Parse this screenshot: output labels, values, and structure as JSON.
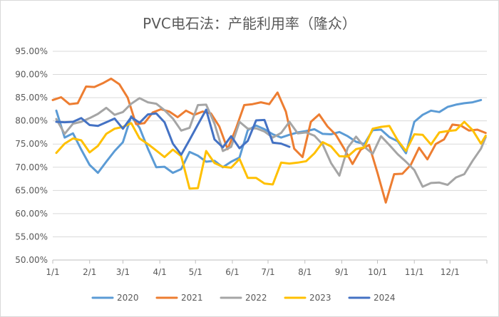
{
  "chart_data": {
    "type": "line",
    "title": "PVC电石法：产能利用率（隆众）",
    "xlabel": "",
    "ylabel": "",
    "ylim": [
      50,
      95
    ],
    "y_ticks": [
      "50.00%",
      "55.00%",
      "60.00%",
      "65.00%",
      "70.00%",
      "75.00%",
      "80.00%",
      "85.00%",
      "90.00%",
      "95.00%"
    ],
    "x_ticks": [
      "1/1",
      "2/1",
      "3/1",
      "4/1",
      "5/1",
      "6/1",
      "7/1",
      "8/1",
      "9/1",
      "10/1",
      "11/1",
      "12/1"
    ],
    "x_tick_days": [
      0,
      31,
      59,
      90,
      120,
      151,
      181,
      212,
      243,
      273,
      304,
      334
    ],
    "x_range_days": [
      0,
      365
    ],
    "grid": "horizontal",
    "legend_position": "bottom",
    "series": [
      {
        "name": "2020",
        "color": "#5B9BD5",
        "points": [
          [
            3,
            82.2
          ],
          [
            10,
            76.4
          ],
          [
            17,
            77.3
          ],
          [
            24,
            73.8
          ],
          [
            31,
            70.5
          ],
          [
            38,
            68.8
          ],
          [
            45,
            71.2
          ],
          [
            52,
            73.5
          ],
          [
            59,
            75.4
          ],
          [
            66,
            81.0
          ],
          [
            73,
            78.5
          ],
          [
            80,
            74.0
          ],
          [
            87,
            70.0
          ],
          [
            94,
            70.1
          ],
          [
            101,
            68.8
          ],
          [
            108,
            69.6
          ],
          [
            115,
            73.3
          ],
          [
            122,
            72.5
          ],
          [
            129,
            71.2
          ],
          [
            136,
            71.4
          ],
          [
            143,
            70.0
          ],
          [
            150,
            71.2
          ],
          [
            157,
            72.1
          ],
          [
            164,
            78.0
          ],
          [
            171,
            79.0
          ],
          [
            178,
            78.2
          ],
          [
            185,
            77.1
          ],
          [
            192,
            76.4
          ],
          [
            199,
            77.0
          ],
          [
            206,
            77.5
          ],
          [
            213,
            77.8
          ],
          [
            220,
            78.2
          ],
          [
            227,
            77.2
          ],
          [
            234,
            77.1
          ],
          [
            241,
            77.6
          ],
          [
            248,
            76.7
          ],
          [
            255,
            75.5
          ],
          [
            262,
            75.0
          ],
          [
            269,
            78.0
          ],
          [
            276,
            78.1
          ],
          [
            283,
            76.5
          ],
          [
            290,
            75.6
          ],
          [
            297,
            73.0
          ],
          [
            304,
            79.8
          ],
          [
            311,
            81.3
          ],
          [
            318,
            82.2
          ],
          [
            325,
            81.9
          ],
          [
            332,
            83.0
          ],
          [
            339,
            83.5
          ],
          [
            346,
            83.8
          ],
          [
            353,
            84.0
          ],
          [
            360,
            84.5
          ]
        ]
      },
      {
        "name": "2021",
        "color": "#ED7D31",
        "points": [
          [
            0,
            84.5
          ],
          [
            7,
            85.1
          ],
          [
            14,
            83.6
          ],
          [
            21,
            83.8
          ],
          [
            28,
            87.4
          ],
          [
            35,
            87.3
          ],
          [
            42,
            88.1
          ],
          [
            49,
            89.1
          ],
          [
            56,
            87.9
          ],
          [
            63,
            85.0
          ],
          [
            70,
            79.3
          ],
          [
            77,
            79.5
          ],
          [
            84,
            81.8
          ],
          [
            91,
            82.5
          ],
          [
            98,
            82.0
          ],
          [
            105,
            80.8
          ],
          [
            112,
            82.2
          ],
          [
            119,
            81.3
          ],
          [
            126,
            82.0
          ],
          [
            133,
            81.6
          ],
          [
            140,
            78.8
          ],
          [
            147,
            73.9
          ],
          [
            154,
            78.3
          ],
          [
            161,
            83.4
          ],
          [
            168,
            83.6
          ],
          [
            175,
            84.0
          ],
          [
            182,
            83.6
          ],
          [
            189,
            86.1
          ],
          [
            196,
            82.0
          ],
          [
            203,
            74.0
          ],
          [
            210,
            72.2
          ],
          [
            217,
            79.8
          ],
          [
            224,
            81.4
          ],
          [
            231,
            78.8
          ],
          [
            238,
            77.0
          ],
          [
            245,
            74.0
          ],
          [
            252,
            70.7
          ],
          [
            259,
            73.8
          ],
          [
            266,
            74.8
          ],
          [
            273,
            68.8
          ],
          [
            280,
            62.4
          ],
          [
            287,
            68.5
          ],
          [
            294,
            68.6
          ],
          [
            301,
            70.5
          ],
          [
            308,
            74.2
          ],
          [
            315,
            71.7
          ],
          [
            322,
            75.0
          ],
          [
            329,
            76.0
          ],
          [
            336,
            79.2
          ],
          [
            343,
            79.0
          ],
          [
            350,
            77.9
          ],
          [
            357,
            78.1
          ],
          [
            364,
            77.4
          ]
        ]
      },
      {
        "name": "2022",
        "color": "#A5A5A5",
        "points": [
          [
            3,
            80.4
          ],
          [
            10,
            77.2
          ],
          [
            17,
            79.4
          ],
          [
            24,
            79.8
          ],
          [
            31,
            80.6
          ],
          [
            38,
            81.5
          ],
          [
            45,
            82.8
          ],
          [
            52,
            81.3
          ],
          [
            59,
            81.9
          ],
          [
            66,
            83.7
          ],
          [
            73,
            84.9
          ],
          [
            80,
            84.0
          ],
          [
            87,
            83.7
          ],
          [
            94,
            82.3
          ],
          [
            101,
            80.5
          ],
          [
            108,
            77.9
          ],
          [
            115,
            78.5
          ],
          [
            122,
            83.4
          ],
          [
            129,
            83.5
          ],
          [
            136,
            79.4
          ],
          [
            143,
            73.5
          ],
          [
            150,
            74.4
          ],
          [
            157,
            79.8
          ],
          [
            164,
            78.3
          ],
          [
            171,
            78.4
          ],
          [
            178,
            77.7
          ],
          [
            185,
            76.4
          ],
          [
            192,
            77.4
          ],
          [
            199,
            79.8
          ],
          [
            206,
            77.3
          ],
          [
            213,
            77.5
          ],
          [
            220,
            76.8
          ],
          [
            227,
            74.9
          ],
          [
            234,
            70.9
          ],
          [
            241,
            68.2
          ],
          [
            248,
            74.2
          ],
          [
            255,
            76.6
          ],
          [
            262,
            74.4
          ],
          [
            269,
            72.9
          ],
          [
            276,
            76.7
          ],
          [
            283,
            74.8
          ],
          [
            290,
            72.8
          ],
          [
            297,
            71.2
          ],
          [
            304,
            69.4
          ],
          [
            311,
            65.8
          ],
          [
            318,
            66.6
          ],
          [
            325,
            66.7
          ],
          [
            332,
            66.2
          ],
          [
            339,
            67.8
          ],
          [
            346,
            68.5
          ],
          [
            353,
            71.4
          ],
          [
            360,
            74.0
          ],
          [
            364,
            76.5
          ]
        ]
      },
      {
        "name": "2023",
        "color": "#FFC000",
        "points": [
          [
            3,
            73.1
          ],
          [
            10,
            75.1
          ],
          [
            17,
            76.2
          ],
          [
            24,
            75.8
          ],
          [
            31,
            73.2
          ],
          [
            38,
            74.6
          ],
          [
            45,
            77.2
          ],
          [
            52,
            78.3
          ],
          [
            59,
            78.7
          ],
          [
            66,
            79.5
          ],
          [
            73,
            76.2
          ],
          [
            80,
            75.0
          ],
          [
            87,
            73.6
          ],
          [
            94,
            72.2
          ],
          [
            101,
            73.8
          ],
          [
            108,
            72.4
          ],
          [
            115,
            65.4
          ],
          [
            122,
            65.5
          ],
          [
            129,
            73.5
          ],
          [
            136,
            70.9
          ],
          [
            143,
            70.1
          ],
          [
            150,
            69.9
          ],
          [
            157,
            71.8
          ],
          [
            164,
            67.7
          ],
          [
            171,
            67.7
          ],
          [
            178,
            66.5
          ],
          [
            185,
            66.3
          ],
          [
            192,
            71.0
          ],
          [
            199,
            70.8
          ],
          [
            206,
            71.0
          ],
          [
            213,
            71.3
          ],
          [
            220,
            73.0
          ],
          [
            227,
            75.4
          ],
          [
            234,
            74.5
          ],
          [
            241,
            72.4
          ],
          [
            248,
            72.3
          ],
          [
            255,
            73.9
          ],
          [
            262,
            74.3
          ],
          [
            269,
            78.3
          ],
          [
            276,
            78.7
          ],
          [
            283,
            78.9
          ],
          [
            290,
            75.8
          ],
          [
            297,
            73.5
          ],
          [
            304,
            77.1
          ],
          [
            311,
            77.0
          ],
          [
            318,
            74.9
          ],
          [
            325,
            77.5
          ],
          [
            332,
            77.8
          ],
          [
            339,
            78.0
          ],
          [
            346,
            79.8
          ],
          [
            353,
            78.0
          ],
          [
            360,
            75.1
          ],
          [
            364,
            76.8
          ]
        ]
      },
      {
        "name": "2024",
        "color": "#4472C4",
        "points": [
          [
            3,
            79.8
          ],
          [
            10,
            79.7
          ],
          [
            17,
            79.8
          ],
          [
            24,
            80.6
          ],
          [
            31,
            79.1
          ],
          [
            38,
            78.9
          ],
          [
            45,
            79.7
          ],
          [
            52,
            80.5
          ],
          [
            59,
            78.3
          ],
          [
            66,
            80.8
          ],
          [
            73,
            79.6
          ],
          [
            80,
            81.4
          ],
          [
            87,
            81.6
          ],
          [
            94,
            79.7
          ],
          [
            101,
            75.1
          ],
          [
            108,
            72.7
          ],
          [
            115,
            75.9
          ],
          [
            122,
            79.2
          ],
          [
            129,
            82.4
          ],
          [
            136,
            76.0
          ],
          [
            143,
            74.3
          ],
          [
            150,
            76.7
          ],
          [
            157,
            74.1
          ],
          [
            164,
            75.7
          ],
          [
            171,
            80.1
          ],
          [
            178,
            80.2
          ],
          [
            185,
            75.3
          ],
          [
            192,
            75.1
          ],
          [
            199,
            74.4
          ]
        ]
      }
    ]
  }
}
